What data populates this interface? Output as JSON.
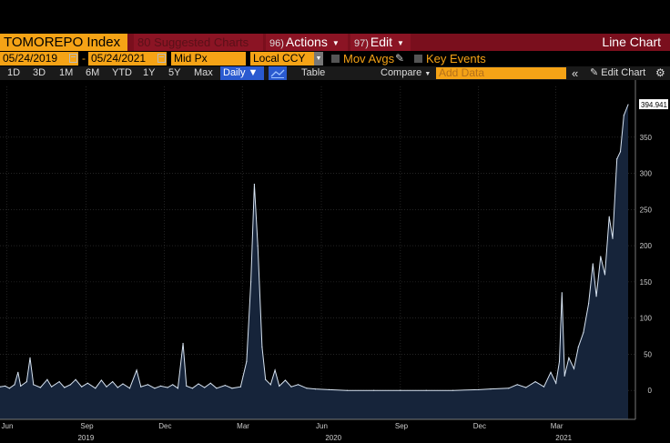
{
  "header": {
    "ticker": "TOMOREPO Index",
    "suggested": "Suggested Charts",
    "suggested_num": "80",
    "actions": "Actions",
    "actions_num": "96)",
    "edit": "Edit",
    "edit_num": "97)",
    "title": "Line Chart"
  },
  "toolbar": {
    "start_date": "05/24/2019",
    "end_date": "05/24/2021",
    "field": "Mid Px",
    "currency": "Local CCY",
    "mov_avgs": "Mov Avgs",
    "key_events": "Key Events"
  },
  "periods": [
    "1D",
    "3D",
    "1M",
    "6M",
    "YTD",
    "1Y",
    "5Y",
    "Max"
  ],
  "periodicity": "Daily",
  "table_label": "Table",
  "compare_label": "Compare",
  "add_data_placeholder": "Add Data",
  "edit_chart_label": "Edit Chart",
  "colors": {
    "accent": "#f5a316",
    "header": "#7a0f1d",
    "line": "#d8e4f2",
    "fill": "#16243a"
  },
  "chart_data": {
    "type": "area",
    "title": "",
    "xlabel": "",
    "ylabel": "",
    "ylim": [
      -40,
      395
    ],
    "y_ticks": [
      0,
      50,
      100,
      150,
      200,
      250,
      300,
      350
    ],
    "last_value_label": "394.941",
    "x_ticks": [
      {
        "date": "2019-06-01",
        "label": "Jun"
      },
      {
        "date": "2019-09-01",
        "label": "Sep"
      },
      {
        "date": "2019-12-01",
        "label": "Dec"
      },
      {
        "date": "2020-03-01",
        "label": "Mar"
      },
      {
        "date": "2020-06-01",
        "label": "Jun"
      },
      {
        "date": "2020-09-01",
        "label": "Sep"
      },
      {
        "date": "2020-12-01",
        "label": "Dec"
      },
      {
        "date": "2021-03-01",
        "label": "Mar"
      }
    ],
    "year_labels": [
      {
        "date": "2019-09-01",
        "label": "2019"
      },
      {
        "date": "2020-06-15",
        "label": "2020"
      },
      {
        "date": "2021-03-10",
        "label": "2021"
      }
    ],
    "x_range": [
      "2019-05-24",
      "2021-05-24"
    ],
    "series": [
      {
        "points": [
          [
            "2019-05-24",
            5
          ],
          [
            "2019-05-30",
            6
          ],
          [
            "2019-06-04",
            3
          ],
          [
            "2019-06-10",
            8
          ],
          [
            "2019-06-14",
            25
          ],
          [
            "2019-06-17",
            6
          ],
          [
            "2019-06-24",
            12
          ],
          [
            "2019-06-28",
            45
          ],
          [
            "2019-07-02",
            8
          ],
          [
            "2019-07-10",
            4
          ],
          [
            "2019-07-18",
            15
          ],
          [
            "2019-07-23",
            5
          ],
          [
            "2019-08-01",
            12
          ],
          [
            "2019-08-07",
            4
          ],
          [
            "2019-08-14",
            8
          ],
          [
            "2019-08-20",
            15
          ],
          [
            "2019-08-27",
            5
          ],
          [
            "2019-09-03",
            10
          ],
          [
            "2019-09-12",
            3
          ],
          [
            "2019-09-19",
            14
          ],
          [
            "2019-09-25",
            5
          ],
          [
            "2019-10-02",
            12
          ],
          [
            "2019-10-08",
            4
          ],
          [
            "2019-10-14",
            9
          ],
          [
            "2019-10-22",
            3
          ],
          [
            "2019-10-30",
            28
          ],
          [
            "2019-11-04",
            5
          ],
          [
            "2019-11-12",
            8
          ],
          [
            "2019-11-20",
            3
          ],
          [
            "2019-11-27",
            6
          ],
          [
            "2019-12-05",
            4
          ],
          [
            "2019-12-11",
            8
          ],
          [
            "2019-12-17",
            3
          ],
          [
            "2019-12-23",
            65
          ],
          [
            "2019-12-27",
            6
          ],
          [
            "2020-01-03",
            3
          ],
          [
            "2020-01-10",
            9
          ],
          [
            "2020-01-17",
            4
          ],
          [
            "2020-01-24",
            10
          ],
          [
            "2020-01-31",
            3
          ],
          [
            "2020-02-10",
            7
          ],
          [
            "2020-02-18",
            3
          ],
          [
            "2020-02-28",
            5
          ],
          [
            "2020-03-06",
            40
          ],
          [
            "2020-03-11",
            150
          ],
          [
            "2020-03-15",
            285
          ],
          [
            "2020-03-19",
            200
          ],
          [
            "2020-03-24",
            60
          ],
          [
            "2020-03-28",
            15
          ],
          [
            "2020-04-03",
            8
          ],
          [
            "2020-04-08",
            28
          ],
          [
            "2020-04-13",
            6
          ],
          [
            "2020-04-20",
            14
          ],
          [
            "2020-04-27",
            5
          ],
          [
            "2020-05-05",
            8
          ],
          [
            "2020-05-15",
            3
          ],
          [
            "2020-05-25",
            2
          ],
          [
            "2020-06-10",
            1
          ],
          [
            "2020-07-01",
            0
          ],
          [
            "2020-08-01",
            0
          ],
          [
            "2020-09-01",
            0
          ],
          [
            "2020-10-01",
            0
          ],
          [
            "2020-11-01",
            0
          ],
          [
            "2020-12-01",
            1
          ],
          [
            "2020-12-15",
            2
          ],
          [
            "2021-01-05",
            3
          ],
          [
            "2021-01-15",
            8
          ],
          [
            "2021-01-25",
            4
          ],
          [
            "2021-02-05",
            12
          ],
          [
            "2021-02-15",
            5
          ],
          [
            "2021-02-23",
            25
          ],
          [
            "2021-03-01",
            10
          ],
          [
            "2021-03-05",
            40
          ],
          [
            "2021-03-08",
            135
          ],
          [
            "2021-03-11",
            20
          ],
          [
            "2021-03-16",
            45
          ],
          [
            "2021-03-22",
            30
          ],
          [
            "2021-03-27",
            60
          ],
          [
            "2021-04-02",
            80
          ],
          [
            "2021-04-08",
            120
          ],
          [
            "2021-04-13",
            175
          ],
          [
            "2021-04-17",
            130
          ],
          [
            "2021-04-22",
            185
          ],
          [
            "2021-04-27",
            160
          ],
          [
            "2021-05-02",
            240
          ],
          [
            "2021-05-06",
            210
          ],
          [
            "2021-05-11",
            320
          ],
          [
            "2021-05-15",
            330
          ],
          [
            "2021-05-19",
            380
          ],
          [
            "2021-05-24",
            394.941
          ]
        ]
      }
    ]
  }
}
